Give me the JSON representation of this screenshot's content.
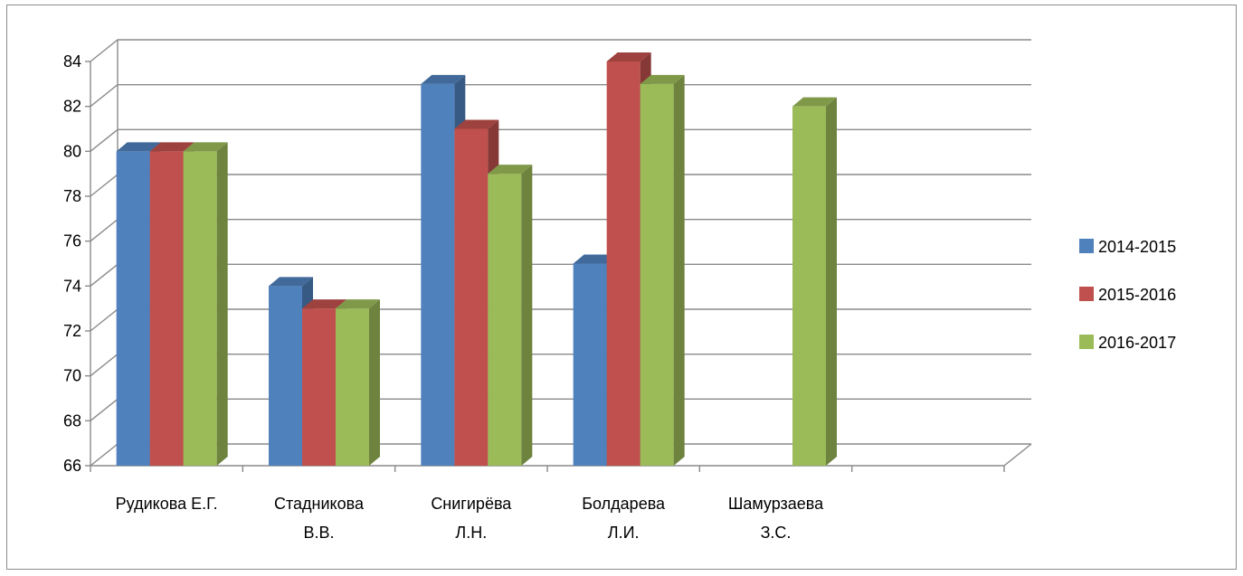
{
  "chart_data": {
    "type": "bar",
    "categories": [
      [
        "Рудикова Е.Г."
      ],
      [
        "Стадникова",
        "В.В."
      ],
      [
        "Снигирёва",
        "Л.Н."
      ],
      [
        "Болдарева",
        "Л.И."
      ],
      [
        "Шамурзаева",
        "З.С."
      ],
      [
        ""
      ]
    ],
    "series": [
      {
        "name": "2014-2015",
        "values": [
          80,
          74,
          83,
          75,
          null,
          null
        ],
        "color": "#4F81BD"
      },
      {
        "name": "2015-2016",
        "values": [
          80,
          73,
          81,
          84,
          null,
          null
        ],
        "color": "#C0504D"
      },
      {
        "name": "2016-2017",
        "values": [
          80,
          73,
          79,
          83,
          82,
          null
        ],
        "color": "#9BBB59"
      }
    ],
    "ylim": [
      66,
      84
    ],
    "yticks": [
      66,
      68,
      70,
      72,
      74,
      76,
      78,
      80,
      82,
      84
    ],
    "grid": true,
    "legend_position": "right",
    "style": "3d-clustered-column"
  }
}
